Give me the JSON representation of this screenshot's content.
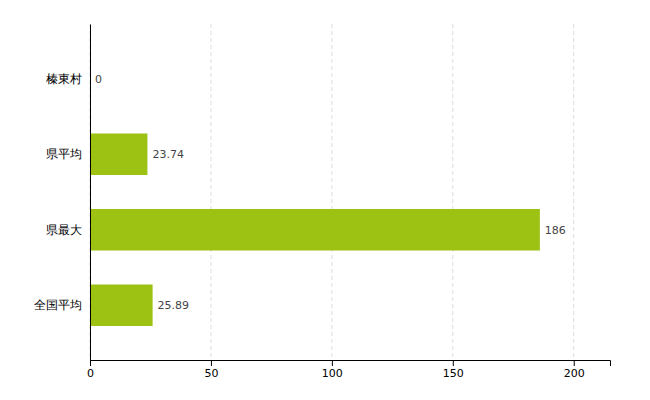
{
  "chart_data": {
    "type": "bar",
    "orientation": "horizontal",
    "categories": [
      "榛東村",
      "県平均",
      "県最大",
      "全国平均"
    ],
    "values": [
      0,
      23.74,
      186,
      25.89
    ],
    "data_labels": true,
    "color": "#9dc214",
    "xlim": [
      0,
      215
    ],
    "xticks": [
      0,
      50,
      100,
      150,
      200
    ],
    "grid": true
  }
}
